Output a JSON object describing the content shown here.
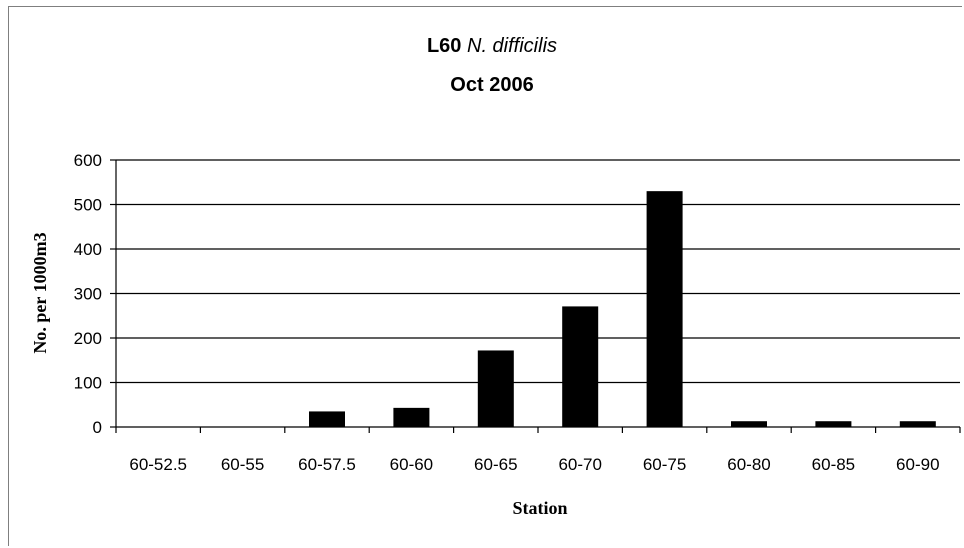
{
  "chart_data": {
    "type": "bar",
    "title_prefix": "L60 ",
    "title_italic": "N. difficilis",
    "subtitle": "Oct 2006",
    "xlabel": "Station",
    "ylabel": "No. per 1000m3",
    "categories": [
      "60-52.5",
      "60-55",
      "60-57.5",
      "60-60",
      "60-65",
      "60-70",
      "60-75",
      "60-80",
      "60-85",
      "60-90"
    ],
    "values": [
      0,
      0,
      35,
      43,
      172,
      271,
      530,
      13,
      13,
      13
    ],
    "ylim": [
      0,
      600
    ],
    "yticks": [
      "0",
      "100",
      "200",
      "300",
      "400",
      "500",
      "600"
    ],
    "grid": true,
    "legend": "none",
    "bar_color": "#000000",
    "gridline_color": "#000000"
  }
}
